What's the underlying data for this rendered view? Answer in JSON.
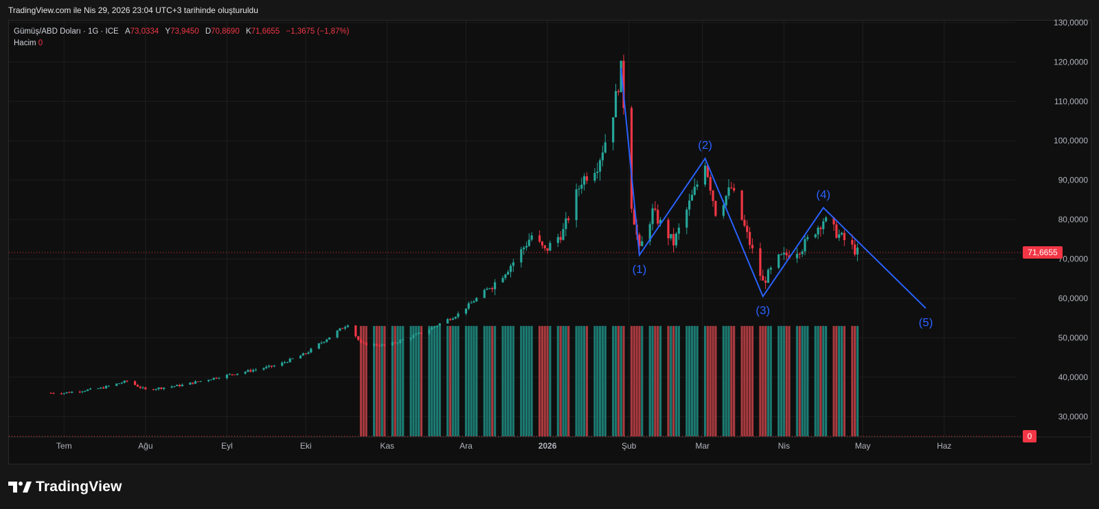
{
  "header": {
    "title": "TradingView.com ile Nis 29, 2026 23:04 UTC+3 tarihinde oluşturuldu"
  },
  "legend": {
    "symbol": "Gümüş/ABD Doları · 1G · ICE",
    "open_label": "A",
    "open": "73,0334",
    "high_label": "Y",
    "high": "73,9450",
    "low_label": "D",
    "low": "70,8690",
    "close_label": "K",
    "close": "71,6655",
    "change": "−1,3675 (−1,87%)",
    "volume_label": "Hacim",
    "volume": "0"
  },
  "footer": {
    "brand": "TradingView"
  },
  "colors": {
    "up": "#26a69a",
    "down": "#f23645",
    "wave": "#2962ff",
    "vol_up": "#1c7a72",
    "vol_down": "#a83a3f"
  },
  "chart_data": {
    "type": "candlestick",
    "y_axis_ticks": [
      "30,0000",
      "40,0000",
      "50,0000",
      "60,0000",
      "70,0000",
      "80,0000",
      "90,0000",
      "100,0000",
      "110,0000",
      "120,0000",
      "130,0000"
    ],
    "ylim": [
      25,
      130.5
    ],
    "x_axis_ticks": [
      "Tem",
      "Ağu",
      "Eyl",
      "Eki",
      "Kas",
      "Ara",
      "2026",
      "Şub",
      "Mar",
      "Nis",
      "May",
      "Haz"
    ],
    "last_price": "71,6655",
    "last_price_value": 71.6655,
    "volume_last": "0",
    "price_path": [
      {
        "date": "2025-07-01",
        "value": 36.0
      },
      {
        "date": "2025-07-15",
        "value": 37.2
      },
      {
        "date": "2025-07-25",
        "value": 39.0
      },
      {
        "date": "2025-08-01",
        "value": 36.8
      },
      {
        "date": "2025-08-15",
        "value": 38.0
      },
      {
        "date": "2025-09-01",
        "value": 40.5
      },
      {
        "date": "2025-09-20",
        "value": 43.0
      },
      {
        "date": "2025-10-01",
        "value": 46.0
      },
      {
        "date": "2025-10-17",
        "value": 53.5
      },
      {
        "date": "2025-10-22",
        "value": 48.5
      },
      {
        "date": "2025-11-01",
        "value": 48.0
      },
      {
        "date": "2025-11-15",
        "value": 51.5
      },
      {
        "date": "2025-11-28",
        "value": 56.0
      },
      {
        "date": "2025-12-12",
        "value": 64.0
      },
      {
        "date": "2025-12-20",
        "value": 70.0
      },
      {
        "date": "2025-12-26",
        "value": 76.0
      },
      {
        "date": "2025-12-31",
        "value": 72.0
      },
      {
        "date": "2026-01-07",
        "value": 77.0
      },
      {
        "date": "2026-01-14",
        "value": 90.0
      },
      {
        "date": "2026-01-20",
        "value": 94.0
      },
      {
        "date": "2026-01-25",
        "value": 104.0
      },
      {
        "date": "2026-01-29",
        "value": 118.0
      },
      {
        "date": "2026-02-02",
        "value": 84.0
      },
      {
        "date": "2026-02-05",
        "value": 72.0
      },
      {
        "date": "2026-02-10",
        "value": 82.0
      },
      {
        "date": "2026-02-18",
        "value": 74.0
      },
      {
        "date": "2026-02-27",
        "value": 89.0
      },
      {
        "date": "2026-03-02",
        "value": 95.0
      },
      {
        "date": "2026-03-06",
        "value": 82.0
      },
      {
        "date": "2026-03-12",
        "value": 88.0
      },
      {
        "date": "2026-03-20",
        "value": 72.0
      },
      {
        "date": "2026-03-24",
        "value": 64.0
      },
      {
        "date": "2026-03-30",
        "value": 70.0
      },
      {
        "date": "2026-04-08",
        "value": 73.0
      },
      {
        "date": "2026-04-16",
        "value": 80.0
      },
      {
        "date": "2026-04-22",
        "value": 76.0
      },
      {
        "date": "2026-04-29",
        "value": 71.67
      }
    ],
    "volume_profile": {
      "from": "2025-10-22",
      "to": "2026-04-29",
      "level": 53
    },
    "wave_path": [
      {
        "label": "",
        "date": "2026-01-29",
        "value": 118.5
      },
      {
        "label": "(1)",
        "date": "2026-02-05",
        "value": 71.0
      },
      {
        "label": "(2)",
        "date": "2026-03-02",
        "value": 95.5
      },
      {
        "label": "(3)",
        "date": "2026-03-24",
        "value": 60.5
      },
      {
        "label": "(4)",
        "date": "2026-04-16",
        "value": 83.0
      },
      {
        "label": "(5)",
        "date": "2026-05-25",
        "value": 57.5
      }
    ]
  }
}
